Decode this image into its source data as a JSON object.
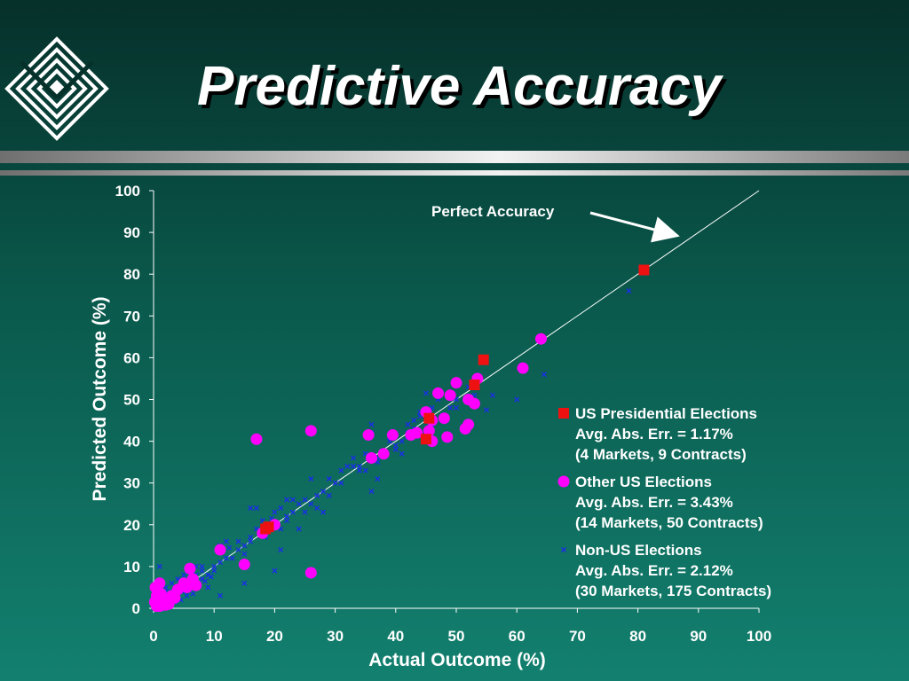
{
  "slide": {
    "title": "Predictive Accuracy",
    "logo_icon": "diamond-logo-icon",
    "colors": {
      "background_top": "#06302a",
      "background_bottom": "#13806f",
      "text": "#ffffff",
      "us_presidential": "#ee1111",
      "other_us": "#ff00ff",
      "non_us": "#1a2fe6"
    }
  },
  "chart_data": {
    "type": "scatter",
    "title": "",
    "xlabel": "Actual Outcome (%)",
    "ylabel": "Predicted Outcome (%)",
    "xlim": [
      0,
      100
    ],
    "ylim": [
      0,
      100
    ],
    "xticks": [
      0,
      10,
      20,
      30,
      40,
      50,
      60,
      70,
      80,
      90,
      100
    ],
    "yticks": [
      0,
      10,
      20,
      30,
      40,
      50,
      60,
      70,
      80,
      90,
      100
    ],
    "grid": false,
    "legend_position": "right",
    "reference_line": {
      "label": "Perfect Accuracy",
      "from": [
        0,
        0
      ],
      "to": [
        100,
        100
      ]
    },
    "series": [
      {
        "name": "US Presidential Elections",
        "details": [
          "Avg. Abs. Err. = 1.17%",
          "(4 Markets, 9 Contracts)"
        ],
        "marker": "square",
        "points": [
          [
            81,
            81
          ],
          [
            54.5,
            59.5
          ],
          [
            53,
            53.5
          ],
          [
            45,
            40.5
          ],
          [
            45.5,
            45.5
          ],
          [
            19,
            19.5
          ],
          [
            18.5,
            19
          ]
        ]
      },
      {
        "name": "Other US Elections",
        "details": [
          "Avg. Abs. Err. = 3.43%",
          "(14 Markets, 50 Contracts)"
        ],
        "marker": "circle",
        "points": [
          [
            64,
            64.5
          ],
          [
            61,
            57.5
          ],
          [
            50,
            54
          ],
          [
            53.5,
            55
          ],
          [
            52,
            50
          ],
          [
            53,
            49
          ],
          [
            52,
            44
          ],
          [
            51.5,
            43
          ],
          [
            49,
            51
          ],
          [
            47,
            51.5
          ],
          [
            48,
            45.5
          ],
          [
            46,
            45
          ],
          [
            45,
            47
          ],
          [
            46,
            40
          ],
          [
            45.5,
            42.5
          ],
          [
            48.5,
            41
          ],
          [
            42.5,
            41.5
          ],
          [
            43.5,
            42
          ],
          [
            39.5,
            41.5
          ],
          [
            38,
            37
          ],
          [
            36,
            36
          ],
          [
            35.5,
            41.5
          ],
          [
            26,
            42.5
          ],
          [
            17,
            40.5
          ],
          [
            26,
            8.5
          ],
          [
            15,
            10.5
          ],
          [
            11,
            14
          ],
          [
            18,
            18
          ],
          [
            20,
            20
          ],
          [
            6,
            9.5
          ],
          [
            5.5,
            5
          ],
          [
            7,
            5.5
          ],
          [
            4,
            4.5
          ],
          [
            3,
            3
          ],
          [
            2,
            2
          ],
          [
            1,
            1
          ],
          [
            0.5,
            0.5
          ],
          [
            0.3,
            5
          ],
          [
            1,
            6
          ],
          [
            0.8,
            2
          ],
          [
            1.5,
            1.5
          ],
          [
            2.5,
            1
          ],
          [
            0.5,
            3
          ],
          [
            1,
            0.5
          ],
          [
            3.5,
            2.5
          ],
          [
            5,
            6
          ],
          [
            6.5,
            7
          ],
          [
            2,
            0.8
          ],
          [
            0.2,
            1.5
          ],
          [
            1.2,
            3.5
          ]
        ]
      },
      {
        "name": "Non-US Elections",
        "details": [
          "Avg. Abs. Err. = 2.12%",
          "(30 Markets, 175 Contracts)"
        ],
        "marker": "x",
        "points": [
          [
            78.5,
            76
          ],
          [
            64.5,
            56
          ],
          [
            60,
            50
          ],
          [
            55,
            47.5
          ],
          [
            53,
            51
          ],
          [
            52,
            50
          ],
          [
            50,
            48
          ],
          [
            48,
            45
          ],
          [
            46,
            44
          ],
          [
            45,
            51.5
          ],
          [
            44,
            47
          ],
          [
            43,
            45
          ],
          [
            42,
            42
          ],
          [
            41,
            40
          ],
          [
            40,
            39
          ],
          [
            39,
            41
          ],
          [
            41,
            37
          ],
          [
            38,
            37
          ],
          [
            37,
            36
          ],
          [
            36,
            44
          ],
          [
            35,
            33
          ],
          [
            34,
            34
          ],
          [
            33,
            36
          ],
          [
            32,
            34
          ],
          [
            36,
            28
          ],
          [
            37,
            31
          ],
          [
            31,
            33
          ],
          [
            30,
            30
          ],
          [
            29,
            27
          ],
          [
            28,
            28
          ],
          [
            27,
            27
          ],
          [
            26,
            25
          ],
          [
            25,
            26
          ],
          [
            27,
            24
          ],
          [
            26,
            31
          ],
          [
            24,
            25
          ],
          [
            23,
            23
          ],
          [
            22,
            22
          ],
          [
            22,
            26
          ],
          [
            21,
            24
          ],
          [
            20,
            23
          ],
          [
            20,
            9
          ],
          [
            21,
            14
          ],
          [
            22,
            21
          ],
          [
            19,
            20
          ],
          [
            18,
            18
          ],
          [
            17,
            24
          ],
          [
            16,
            24
          ],
          [
            15,
            15
          ],
          [
            14,
            16
          ],
          [
            16,
            17
          ],
          [
            17,
            19
          ],
          [
            15,
            13
          ],
          [
            14,
            14
          ],
          [
            12,
            12
          ],
          [
            11,
            11
          ],
          [
            11,
            15
          ],
          [
            12,
            16
          ],
          [
            10,
            9
          ],
          [
            10,
            10
          ],
          [
            9,
            8
          ],
          [
            9,
            5
          ],
          [
            8,
            7
          ],
          [
            8,
            10
          ],
          [
            8,
            9
          ],
          [
            7,
            8
          ],
          [
            7,
            6
          ],
          [
            7,
            10
          ],
          [
            6,
            6
          ],
          [
            6,
            7
          ],
          [
            6,
            8
          ],
          [
            5,
            5
          ],
          [
            5,
            6
          ],
          [
            5,
            4
          ],
          [
            5,
            8
          ],
          [
            4,
            4
          ],
          [
            4,
            3
          ],
          [
            4,
            5
          ],
          [
            4,
            7
          ],
          [
            3,
            2
          ],
          [
            3,
            3
          ],
          [
            3,
            4
          ],
          [
            3,
            6
          ],
          [
            2,
            1
          ],
          [
            2,
            2
          ],
          [
            2,
            3
          ],
          [
            2,
            4
          ],
          [
            2,
            5
          ],
          [
            1,
            1
          ],
          [
            1,
            2
          ],
          [
            1,
            3
          ],
          [
            1,
            10
          ],
          [
            1,
            0.5
          ],
          [
            0.5,
            6
          ],
          [
            0.5,
            1
          ],
          [
            15,
            6
          ],
          [
            13,
            12
          ],
          [
            18,
            21
          ],
          [
            24,
            19
          ],
          [
            28,
            23
          ],
          [
            33,
            34
          ],
          [
            36,
            42
          ],
          [
            40,
            38
          ],
          [
            42,
            44
          ],
          [
            44,
            46
          ],
          [
            47,
            50
          ],
          [
            49,
            48
          ],
          [
            56,
            51
          ],
          [
            11,
            3
          ],
          [
            6.5,
            3.5
          ],
          [
            3.5,
            1.5
          ],
          [
            2.5,
            0.8
          ],
          [
            1.5,
            0.3
          ],
          [
            0.8,
            1.8
          ],
          [
            4.5,
            2
          ],
          [
            5.5,
            3
          ],
          [
            7.5,
            5.5
          ],
          [
            8.5,
            6.5
          ],
          [
            9.5,
            7.5
          ],
          [
            12.5,
            14.5
          ],
          [
            16,
            16
          ],
          [
            18.5,
            17
          ],
          [
            19.5,
            21.5
          ],
          [
            21,
            19
          ],
          [
            23,
            26
          ],
          [
            25,
            23
          ],
          [
            29,
            31
          ],
          [
            31,
            30
          ],
          [
            34,
            33
          ],
          [
            35,
            37
          ],
          [
            37,
            35
          ],
          [
            39,
            40
          ],
          [
            42,
            41
          ],
          [
            43,
            43
          ],
          [
            44,
            42
          ],
          [
            46,
            48
          ],
          [
            48,
            46
          ],
          [
            50,
            50
          ],
          [
            52,
            53
          ]
        ]
      }
    ]
  }
}
